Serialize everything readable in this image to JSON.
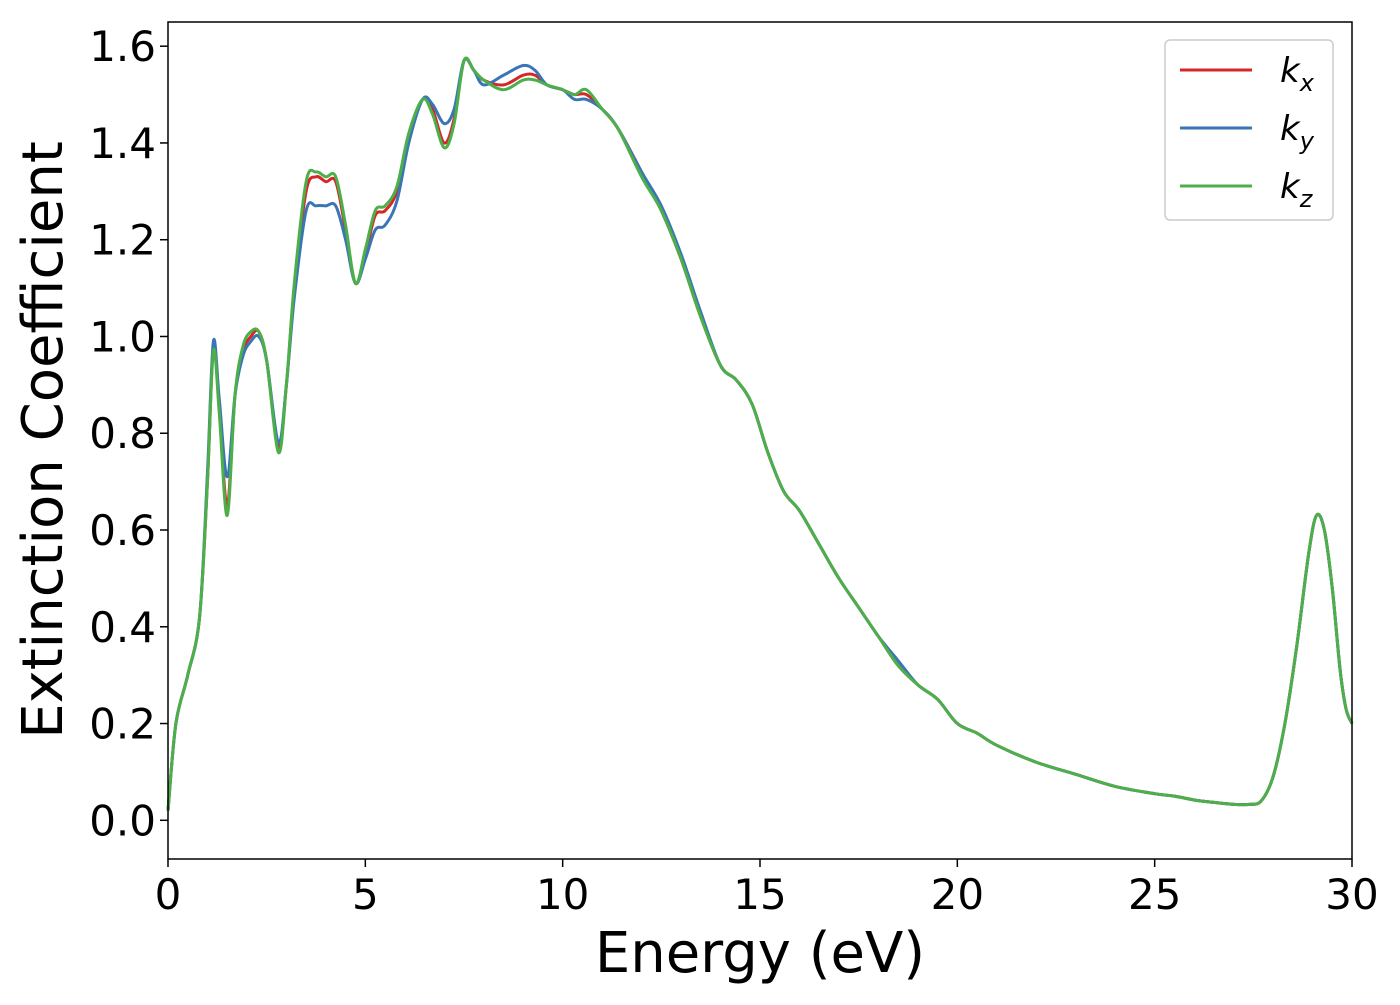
{
  "chart_data": {
    "type": "line",
    "xlabel": "Energy (eV)",
    "ylabel": "Extinction Coefficient",
    "xlim": [
      0,
      30
    ],
    "ylim": [
      -0.08,
      1.65
    ],
    "xticks": [
      "0",
      "5",
      "10",
      "15",
      "20",
      "25",
      "30"
    ],
    "yticks": [
      "0.0",
      "0.2",
      "0.4",
      "0.6",
      "0.8",
      "1.0",
      "1.2",
      "1.4",
      "1.6"
    ],
    "grid": false,
    "legend_position": "top-right",
    "series": [
      {
        "name": "k_x",
        "legend_base": "k",
        "legend_sub": "x",
        "color": "#d62728",
        "x": [
          0,
          0.2,
          0.5,
          0.8,
          1.0,
          1.15,
          1.3,
          1.5,
          1.7,
          1.9,
          2.1,
          2.3,
          2.5,
          2.8,
          3.0,
          3.2,
          3.5,
          3.75,
          4.0,
          4.25,
          4.5,
          4.75,
          5.0,
          5.25,
          5.5,
          5.8,
          6.1,
          6.45,
          6.7,
          7.0,
          7.25,
          7.5,
          7.75,
          8.0,
          8.5,
          9.0,
          9.3,
          9.6,
          10.0,
          10.3,
          10.6,
          11.0,
          11.4,
          12.0,
          12.5,
          13.0,
          13.5,
          14.0,
          14.4,
          14.8,
          15.2,
          15.6,
          16.0,
          16.5,
          17.0,
          17.5,
          18.0,
          18.5,
          19.0,
          19.5,
          20.0,
          20.5,
          21.0,
          22.0,
          23.0,
          24.0,
          25.0,
          25.5,
          26.0,
          26.5,
          27.0,
          27.4,
          27.7,
          28.0,
          28.3,
          28.6,
          28.9,
          29.1,
          29.3,
          29.5,
          29.7,
          29.85,
          30.0
        ],
        "y": [
          0.02,
          0.2,
          0.3,
          0.42,
          0.7,
          0.98,
          0.85,
          0.65,
          0.88,
          0.97,
          1.0,
          1.01,
          0.95,
          0.77,
          0.9,
          1.1,
          1.3,
          1.33,
          1.32,
          1.32,
          1.22,
          1.11,
          1.17,
          1.25,
          1.26,
          1.3,
          1.41,
          1.49,
          1.47,
          1.4,
          1.45,
          1.57,
          1.55,
          1.53,
          1.52,
          1.54,
          1.54,
          1.52,
          1.51,
          1.5,
          1.5,
          1.47,
          1.43,
          1.34,
          1.26,
          1.16,
          1.04,
          0.94,
          0.91,
          0.86,
          0.76,
          0.68,
          0.64,
          0.57,
          0.5,
          0.44,
          0.38,
          0.32,
          0.28,
          0.25,
          0.2,
          0.18,
          0.155,
          0.12,
          0.095,
          0.07,
          0.055,
          0.05,
          0.042,
          0.037,
          0.033,
          0.033,
          0.04,
          0.09,
          0.2,
          0.36,
          0.55,
          0.63,
          0.6,
          0.48,
          0.31,
          0.23,
          0.2
        ]
      },
      {
        "name": "k_y",
        "legend_base": "k",
        "legend_sub": "y",
        "color": "#3a76b6",
        "x": [
          0,
          0.2,
          0.5,
          0.8,
          1.0,
          1.15,
          1.3,
          1.5,
          1.7,
          1.9,
          2.1,
          2.3,
          2.5,
          2.8,
          3.0,
          3.2,
          3.5,
          3.75,
          4.0,
          4.25,
          4.5,
          4.75,
          5.0,
          5.25,
          5.5,
          5.8,
          6.1,
          6.45,
          6.7,
          7.0,
          7.25,
          7.5,
          7.75,
          8.0,
          8.5,
          9.0,
          9.3,
          9.6,
          10.0,
          10.3,
          10.6,
          11.0,
          11.4,
          12.0,
          12.5,
          13.0,
          13.5,
          14.0,
          14.4,
          14.8,
          15.2,
          15.6,
          16.0,
          16.5,
          17.0,
          17.5,
          18.0,
          18.5,
          19.0,
          19.5,
          20.0,
          20.5,
          21.0,
          22.0,
          23.0,
          24.0,
          25.0,
          25.5,
          26.0,
          26.5,
          27.0,
          27.4,
          27.7,
          28.0,
          28.3,
          28.6,
          28.9,
          29.1,
          29.3,
          29.5,
          29.7,
          29.85,
          30.0
        ],
        "y": [
          0.02,
          0.2,
          0.3,
          0.42,
          0.72,
          0.99,
          0.87,
          0.71,
          0.88,
          0.96,
          0.99,
          1.0,
          0.95,
          0.78,
          0.9,
          1.08,
          1.26,
          1.27,
          1.27,
          1.27,
          1.2,
          1.11,
          1.16,
          1.22,
          1.23,
          1.28,
          1.4,
          1.49,
          1.48,
          1.44,
          1.47,
          1.57,
          1.55,
          1.52,
          1.54,
          1.56,
          1.55,
          1.52,
          1.51,
          1.49,
          1.49,
          1.47,
          1.43,
          1.34,
          1.27,
          1.17,
          1.05,
          0.94,
          0.91,
          0.86,
          0.76,
          0.68,
          0.64,
          0.57,
          0.5,
          0.44,
          0.38,
          0.33,
          0.28,
          0.25,
          0.2,
          0.18,
          0.155,
          0.12,
          0.095,
          0.07,
          0.055,
          0.05,
          0.042,
          0.037,
          0.033,
          0.033,
          0.04,
          0.09,
          0.2,
          0.36,
          0.55,
          0.63,
          0.6,
          0.48,
          0.31,
          0.23,
          0.2
        ]
      },
      {
        "name": "k_z",
        "legend_base": "k",
        "legend_sub": "z",
        "color": "#4daf4a",
        "x": [
          0,
          0.2,
          0.5,
          0.8,
          1.0,
          1.15,
          1.3,
          1.5,
          1.7,
          1.9,
          2.1,
          2.3,
          2.5,
          2.8,
          3.0,
          3.2,
          3.5,
          3.75,
          4.0,
          4.25,
          4.5,
          4.75,
          5.0,
          5.25,
          5.5,
          5.8,
          6.1,
          6.45,
          6.7,
          7.0,
          7.25,
          7.5,
          7.75,
          8.0,
          8.5,
          9.0,
          9.3,
          9.6,
          10.0,
          10.3,
          10.6,
          11.0,
          11.4,
          12.0,
          12.5,
          13.0,
          13.5,
          14.0,
          14.4,
          14.8,
          15.2,
          15.6,
          16.0,
          16.5,
          17.0,
          17.5,
          18.0,
          18.5,
          19.0,
          19.5,
          20.0,
          20.5,
          21.0,
          22.0,
          23.0,
          24.0,
          25.0,
          25.5,
          26.0,
          26.5,
          27.0,
          27.4,
          27.7,
          28.0,
          28.3,
          28.6,
          28.9,
          29.1,
          29.3,
          29.5,
          29.7,
          29.85,
          30.0
        ],
        "y": [
          0.02,
          0.2,
          0.3,
          0.42,
          0.7,
          0.97,
          0.84,
          0.63,
          0.88,
          0.98,
          1.01,
          1.01,
          0.95,
          0.76,
          0.9,
          1.11,
          1.32,
          1.34,
          1.33,
          1.33,
          1.23,
          1.11,
          1.18,
          1.26,
          1.27,
          1.31,
          1.42,
          1.49,
          1.46,
          1.39,
          1.44,
          1.57,
          1.55,
          1.53,
          1.51,
          1.53,
          1.53,
          1.52,
          1.51,
          1.5,
          1.51,
          1.47,
          1.43,
          1.33,
          1.26,
          1.16,
          1.04,
          0.94,
          0.91,
          0.86,
          0.76,
          0.68,
          0.64,
          0.57,
          0.5,
          0.44,
          0.38,
          0.32,
          0.28,
          0.25,
          0.2,
          0.18,
          0.155,
          0.12,
          0.095,
          0.07,
          0.055,
          0.05,
          0.042,
          0.037,
          0.033,
          0.033,
          0.04,
          0.09,
          0.2,
          0.36,
          0.55,
          0.63,
          0.6,
          0.48,
          0.31,
          0.23,
          0.2
        ]
      }
    ]
  }
}
